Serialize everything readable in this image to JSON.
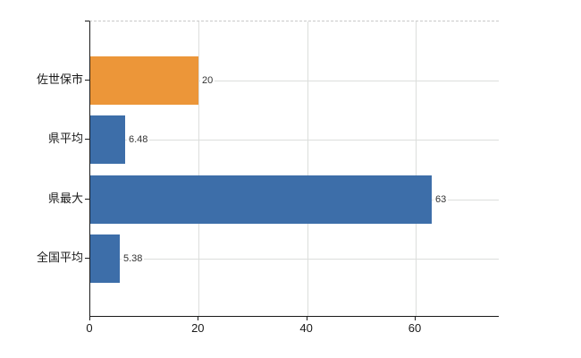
{
  "chart_data": {
    "type": "bar",
    "orientation": "horizontal",
    "title": "",
    "xlabel": "",
    "ylabel": "",
    "categories": [
      "佐世保市",
      "県平均",
      "県最大",
      "全国平均"
    ],
    "values": [
      20,
      6.48,
      63,
      5.38
    ],
    "value_labels": [
      "20",
      "6.48",
      "63",
      "5.38"
    ],
    "bar_colors": [
      "#EC9639",
      "#3D6EA9",
      "#3D6EA9",
      "#3D6EA9"
    ],
    "x_ticks": [
      0,
      20,
      40,
      60
    ],
    "x_tick_labels": [
      "0",
      "20",
      "40",
      "60"
    ],
    "xlim": [
      0,
      75.5
    ],
    "grid": true,
    "legend": false
  },
  "colors": {
    "highlight_bar": "#EC9639",
    "default_bar": "#3D6EA9",
    "gridline": "#DCDEDC",
    "axis": "#1A1A1A",
    "top_border_dashed": "#C9C9C9",
    "category_text": "#1A1A1A",
    "value_text": "#333333",
    "background": "#FFFFFF"
  }
}
